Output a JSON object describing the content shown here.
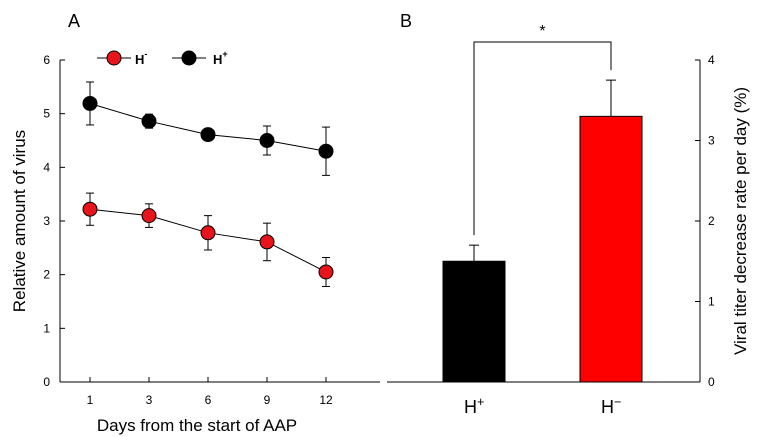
{
  "chart_data": [
    {
      "panel": "A",
      "type": "line",
      "x": [
        "1",
        "3",
        "6",
        "9",
        "12"
      ],
      "xlabel": "Days from the start of AAP",
      "ylabel": "Relative amount of virus",
      "ylim": [
        0,
        6
      ],
      "yticks": [
        "0",
        "1",
        "2",
        "3",
        "4",
        "5",
        "6"
      ],
      "legend_placement": "top-left",
      "series": [
        {
          "name": "H-",
          "name_base": "H",
          "name_sup": "-",
          "color": "#e8141b",
          "values": [
            3.22,
            3.1,
            2.78,
            2.61,
            2.05
          ],
          "errors": [
            0.3,
            0.22,
            0.32,
            0.35,
            0.27
          ]
        },
        {
          "name": "H+",
          "name_base": "H",
          "name_sup": "+",
          "color": "#000000",
          "values": [
            5.19,
            4.86,
            4.61,
            4.5,
            4.3
          ],
          "errors": [
            0.4,
            0.13,
            0.05,
            0.27,
            0.45
          ]
        }
      ]
    },
    {
      "panel": "B",
      "type": "bar",
      "categories": [
        {
          "label": "H+",
          "base": "H",
          "sup": "+"
        },
        {
          "label": "H−",
          "base": "H",
          "sup": "−"
        }
      ],
      "values": [
        1.5,
        3.3
      ],
      "errors": [
        0.2,
        0.45
      ],
      "colors": [
        "#000000",
        "#ff0000"
      ],
      "ylabel": "Viral titer decrease rate per day (%)",
      "ylim": [
        0,
        4
      ],
      "yticks": [
        "0",
        "1",
        "2",
        "3",
        "4"
      ],
      "y_axis_side": "right",
      "significance": "*"
    }
  ]
}
